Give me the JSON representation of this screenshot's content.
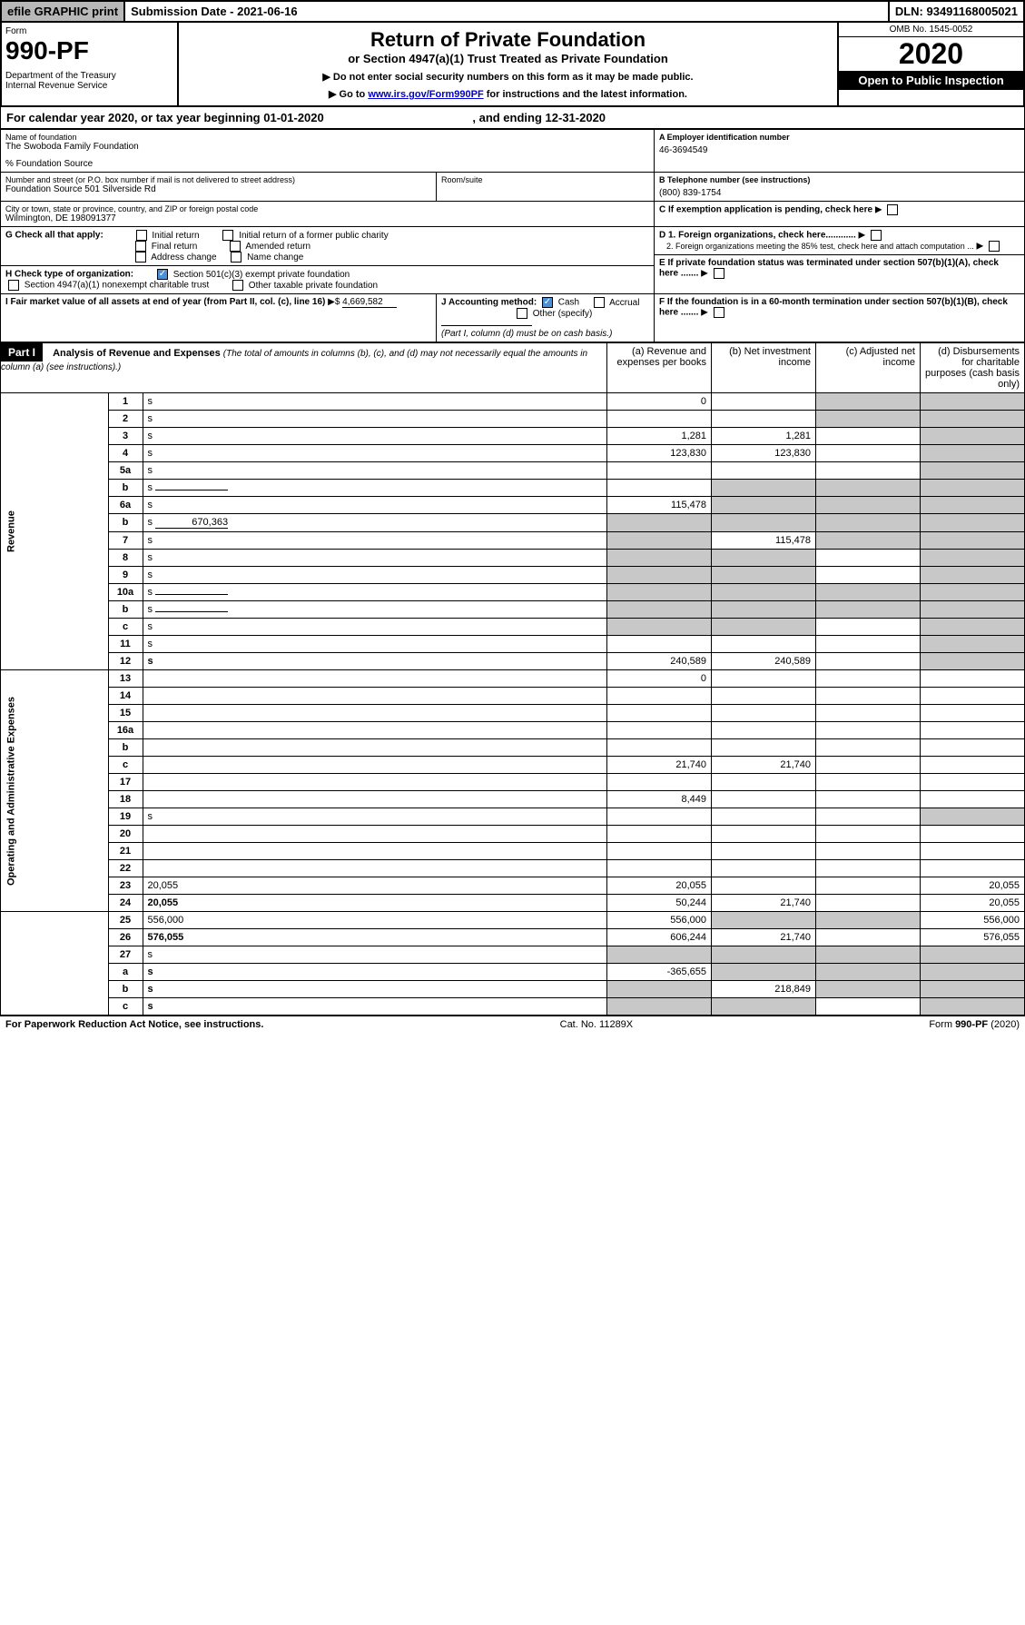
{
  "top": {
    "efile": "efile GRAPHIC print",
    "submission": "Submission Date - 2021-06-16",
    "dln": "DLN: 93491168005021"
  },
  "header": {
    "form": "Form",
    "num": "990-PF",
    "dept": "Department of the Treasury\nInternal Revenue Service",
    "title": "Return of Private Foundation",
    "subtitle": "or Section 4947(a)(1) Trust Treated as Private Foundation",
    "note1": "▶ Do not enter social security numbers on this form as it may be made public.",
    "note2_pre": "▶ Go to ",
    "note2_link": "www.irs.gov/Form990PF",
    "note2_post": " for instructions and the latest information.",
    "omb": "OMB No. 1545-0052",
    "year": "2020",
    "open": "Open to Public Inspection"
  },
  "calendar": {
    "text_pre": "For calendar year 2020, or tax year beginning ",
    "begin": "01-01-2020",
    "text_mid": " , and ending ",
    "end": "12-31-2020"
  },
  "info": {
    "name_label": "Name of foundation",
    "name": "The Swoboda Family Foundation",
    "care": "% Foundation Source",
    "addr_label": "Number and street (or P.O. box number if mail is not delivered to street address)",
    "addr": "Foundation Source 501 Silverside Rd",
    "room_label": "Room/suite",
    "city_label": "City or town, state or province, country, and ZIP or foreign postal code",
    "city": "Wilmington, DE 198091377",
    "a_label": "A Employer identification number",
    "a_val": "46-3694549",
    "b_label": "B Telephone number (see instructions)",
    "b_val": "(800) 839-1754",
    "c_label": "C If exemption application is pending, check here",
    "d1": "D 1. Foreign organizations, check here............",
    "d2": "2. Foreign organizations meeting the 85% test, check here and attach computation ...",
    "e": "E If private foundation status was terminated under section 507(b)(1)(A), check here .......",
    "f": "F If the foundation is in a 60-month termination under section 507(b)(1)(B), check here ......."
  },
  "g": {
    "label": "G Check all that apply:",
    "opts": [
      "Initial return",
      "Initial return of a former public charity",
      "Final return",
      "Amended return",
      "Address change",
      "Name change"
    ]
  },
  "h": {
    "label": "H Check type of organization:",
    "opt1": "Section 501(c)(3) exempt private foundation",
    "opt2": "Section 4947(a)(1) nonexempt charitable trust",
    "opt3": "Other taxable private foundation"
  },
  "i": {
    "label": "I Fair market value of all assets at end of year (from Part II, col. (c), line 16)",
    "val": "4,669,582"
  },
  "j": {
    "label": "J Accounting method:",
    "cash": "Cash",
    "accrual": "Accrual",
    "other": "Other (specify)",
    "note": "(Part I, column (d) must be on cash basis.)"
  },
  "part1": {
    "label": "Part I",
    "title": "Analysis of Revenue and Expenses",
    "title_note": "(The total of amounts in columns (b), (c), and (d) may not necessarily equal the amounts in column (a) (see instructions).)",
    "col_a": "(a) Revenue and expenses per books",
    "col_b": "(b) Net investment income",
    "col_c": "(c) Adjusted net income",
    "col_d": "(d) Disbursements for charitable purposes (cash basis only)",
    "revenue_label": "Revenue",
    "expenses_label": "Operating and Administrative Expenses"
  },
  "rows": [
    {
      "n": "1",
      "d": "s",
      "a": "0",
      "b": "",
      "c": "s"
    },
    {
      "n": "2",
      "d": "s",
      "a": "",
      "b": "",
      "c": "s",
      "bold_not": true
    },
    {
      "n": "3",
      "d": "s",
      "a": "1,281",
      "b": "1,281",
      "c": ""
    },
    {
      "n": "4",
      "d": "s",
      "a": "123,830",
      "b": "123,830",
      "c": ""
    },
    {
      "n": "5a",
      "d": "s",
      "a": "",
      "b": "",
      "c": ""
    },
    {
      "n": "b",
      "d": "s",
      "a": "",
      "b": "s",
      "c": "s",
      "inline": true
    },
    {
      "n": "6a",
      "d": "s",
      "a": "115,478",
      "b": "s",
      "c": "s"
    },
    {
      "n": "b",
      "d": "s",
      "a": "s",
      "b": "s",
      "c": "s",
      "inline": true,
      "inline_val": "670,363"
    },
    {
      "n": "7",
      "d": "s",
      "a": "s",
      "b": "115,478",
      "c": "s"
    },
    {
      "n": "8",
      "d": "s",
      "a": "s",
      "b": "s",
      "c": ""
    },
    {
      "n": "9",
      "d": "s",
      "a": "s",
      "b": "s",
      "c": ""
    },
    {
      "n": "10a",
      "d": "s",
      "a": "s",
      "b": "s",
      "c": "s",
      "inline": true
    },
    {
      "n": "b",
      "d": "s",
      "a": "s",
      "b": "s",
      "c": "s",
      "inline": true
    },
    {
      "n": "c",
      "d": "s",
      "a": "s",
      "b": "s",
      "c": ""
    },
    {
      "n": "11",
      "d": "s",
      "a": "",
      "b": "",
      "c": ""
    },
    {
      "n": "12",
      "d": "s",
      "a": "240,589",
      "b": "240,589",
      "c": "",
      "bold": true
    },
    {
      "n": "13",
      "d": "",
      "a": "0",
      "b": "",
      "c": ""
    },
    {
      "n": "14",
      "d": "",
      "a": "",
      "b": "",
      "c": ""
    },
    {
      "n": "15",
      "d": "",
      "a": "",
      "b": "",
      "c": ""
    },
    {
      "n": "16a",
      "d": "",
      "a": "",
      "b": "",
      "c": ""
    },
    {
      "n": "b",
      "d": "",
      "a": "",
      "b": "",
      "c": ""
    },
    {
      "n": "c",
      "d": "",
      "a": "21,740",
      "b": "21,740",
      "c": ""
    },
    {
      "n": "17",
      "d": "",
      "a": "",
      "b": "",
      "c": ""
    },
    {
      "n": "18",
      "d": "",
      "a": "8,449",
      "b": "",
      "c": ""
    },
    {
      "n": "19",
      "d": "s",
      "a": "",
      "b": "",
      "c": ""
    },
    {
      "n": "20",
      "d": "",
      "a": "",
      "b": "",
      "c": ""
    },
    {
      "n": "21",
      "d": "",
      "a": "",
      "b": "",
      "c": ""
    },
    {
      "n": "22",
      "d": "",
      "a": "",
      "b": "",
      "c": ""
    },
    {
      "n": "23",
      "d": "20,055",
      "a": "20,055",
      "b": "",
      "c": ""
    },
    {
      "n": "24",
      "d": "20,055",
      "a": "50,244",
      "b": "21,740",
      "c": "",
      "bold": true
    },
    {
      "n": "25",
      "d": "556,000",
      "a": "556,000",
      "b": "s",
      "c": "s"
    },
    {
      "n": "26",
      "d": "576,055",
      "a": "606,244",
      "b": "21,740",
      "c": "",
      "bold": true
    },
    {
      "n": "27",
      "d": "s",
      "a": "s",
      "b": "s",
      "c": "s"
    },
    {
      "n": "a",
      "d": "s",
      "a": "-365,655",
      "b": "s",
      "c": "s",
      "bold": true
    },
    {
      "n": "b",
      "d": "s",
      "a": "s",
      "b": "218,849",
      "c": "s",
      "bold": true
    },
    {
      "n": "c",
      "d": "s",
      "a": "s",
      "b": "s",
      "c": "",
      "bold": true
    }
  ],
  "footer": {
    "left": "For Paperwork Reduction Act Notice, see instructions.",
    "mid": "Cat. No. 11289X",
    "right": "Form 990-PF (2020)"
  },
  "colors": {
    "shaded": "#c8c8c8",
    "check_blue": "#4a90d9",
    "link": "#0000cc"
  }
}
